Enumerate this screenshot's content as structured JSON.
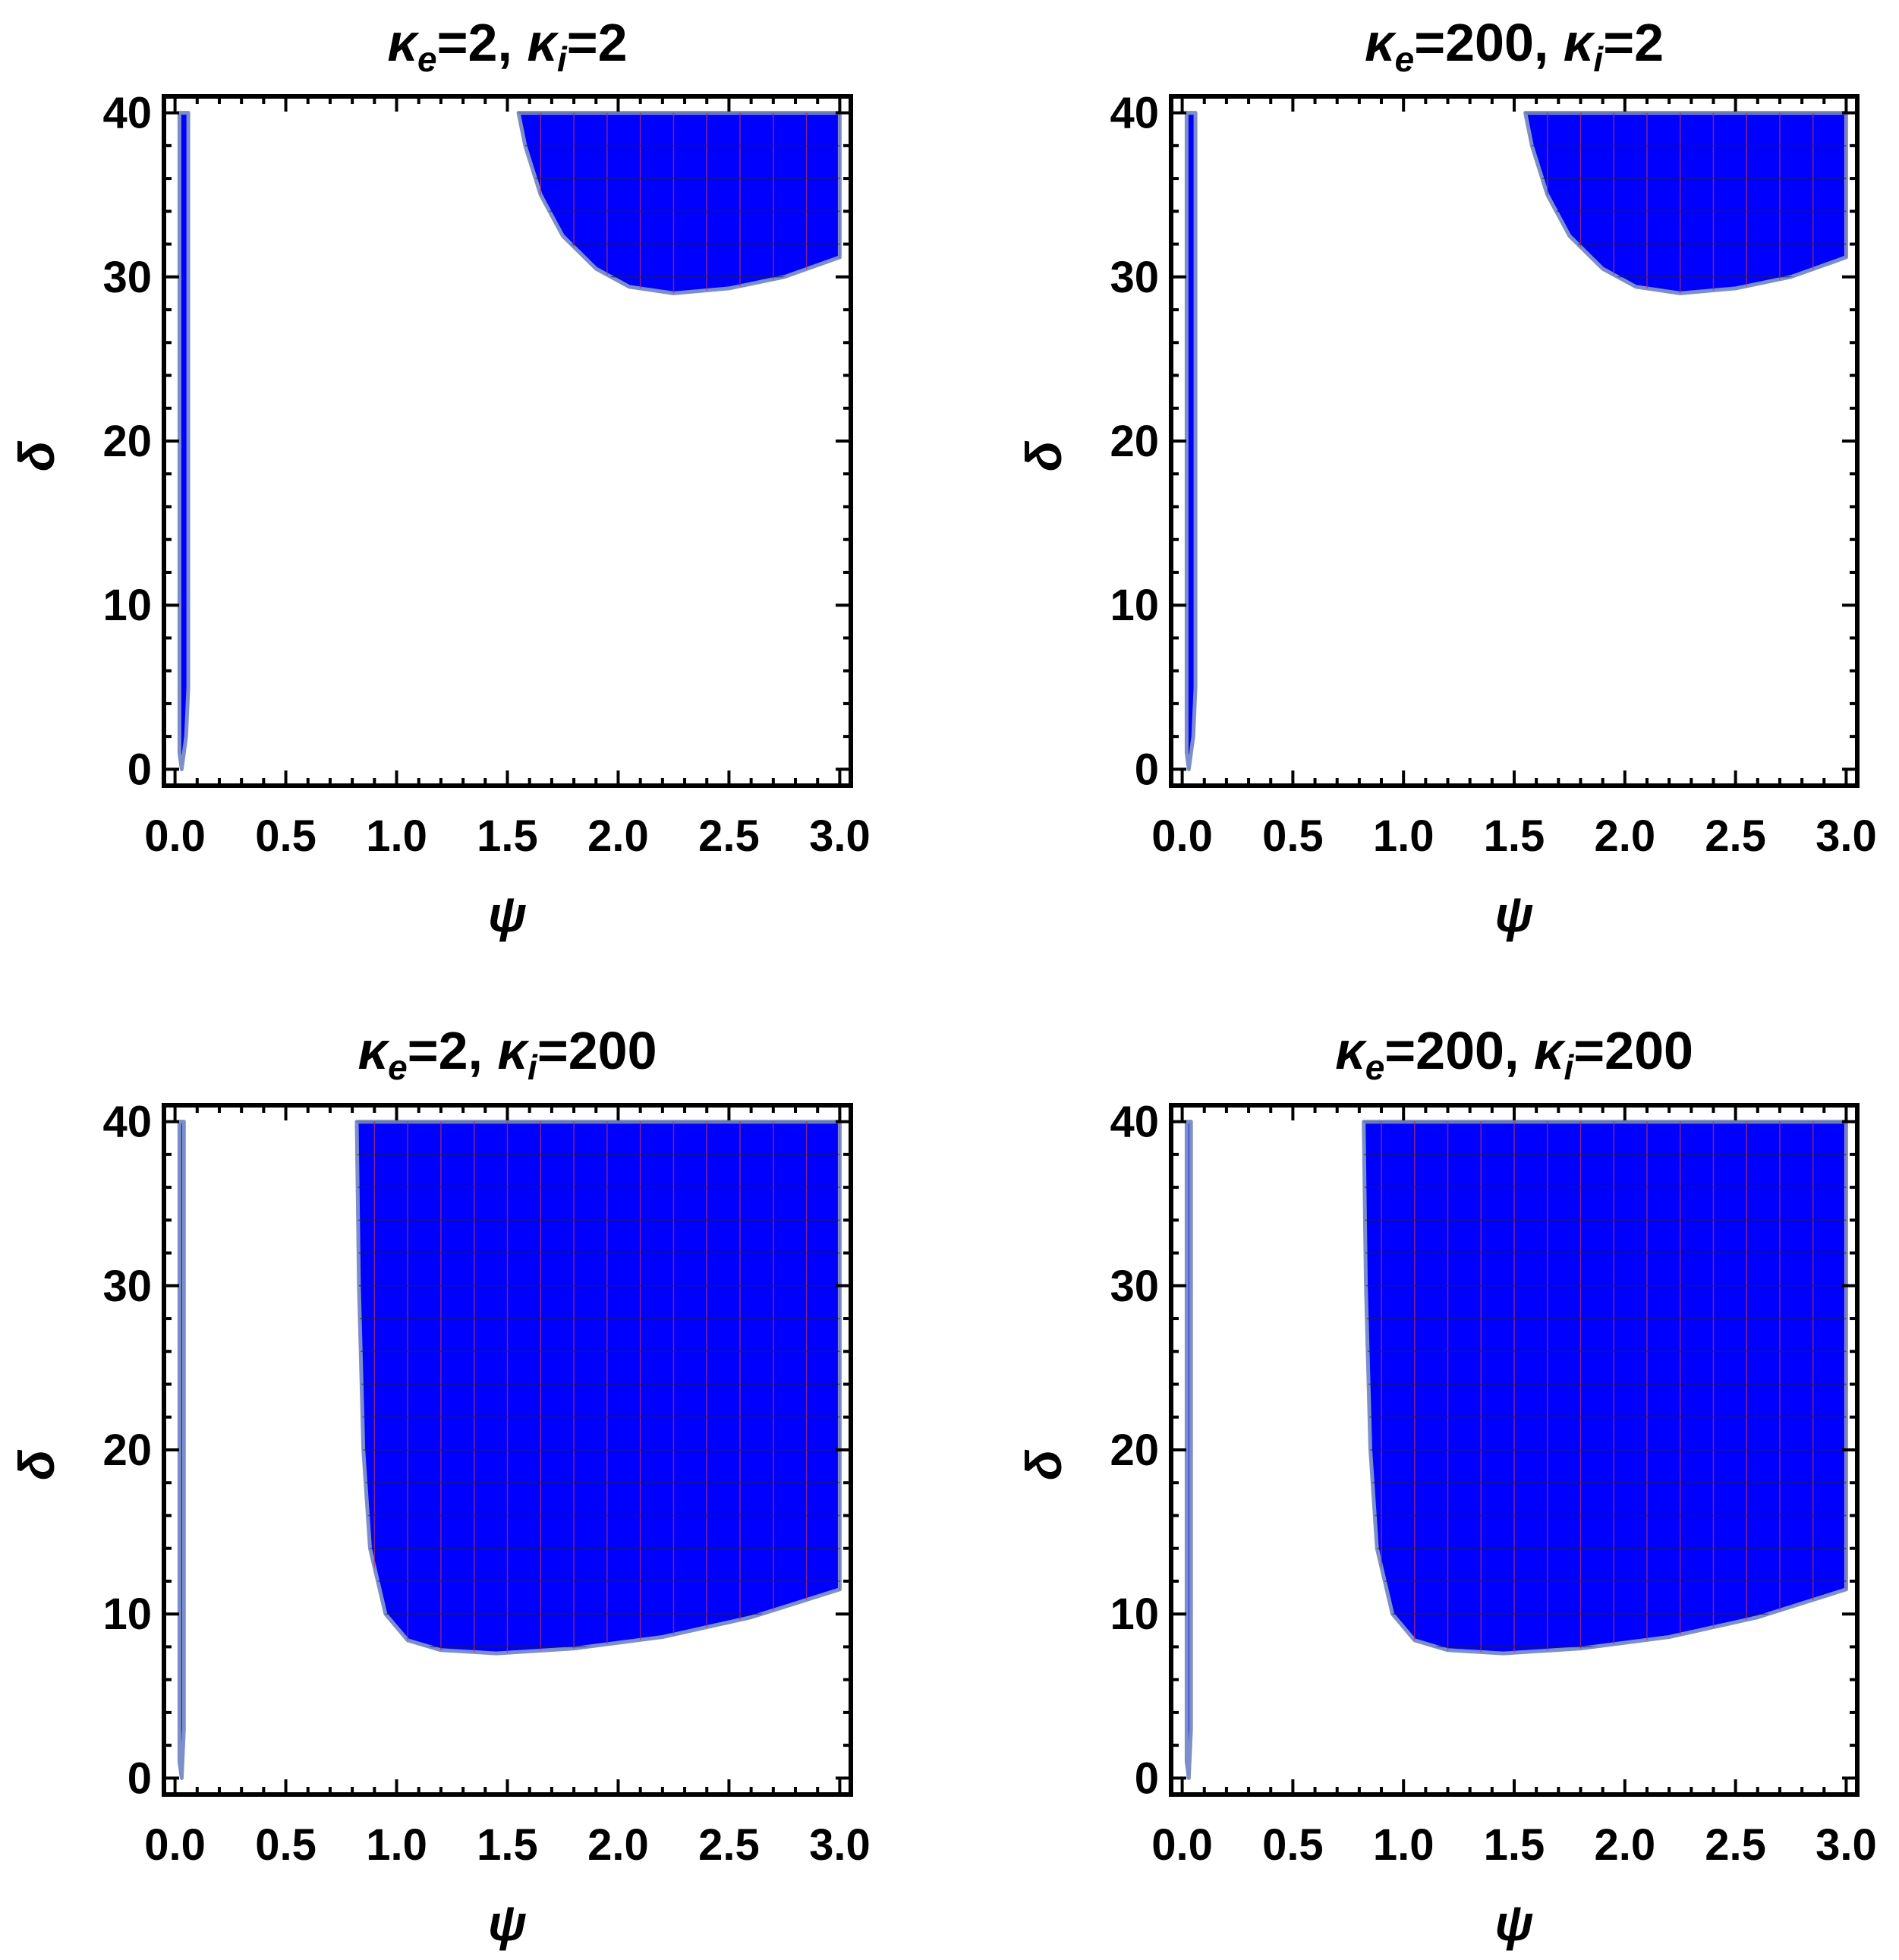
{
  "colors": {
    "region_fill": "#0000ff",
    "region_edge": "#7c8fc9",
    "grid_v": "#b03060",
    "grid_h": "#202040",
    "frame": "#000000"
  },
  "chart_data": [
    {
      "type": "area",
      "title": {
        "kappa_e": "2",
        "kappa_i": "2"
      },
      "xlabel": "ψ",
      "ylabel": "δ",
      "xlim": [
        -0.05,
        3.05
      ],
      "ylim": [
        -1,
        41
      ],
      "xticks": [
        "0.0",
        "0.5",
        "1.0",
        "1.5",
        "2.0",
        "2.5",
        "3.0"
      ],
      "yticks": [
        "0",
        "10",
        "20",
        "30",
        "40"
      ],
      "regions": [
        {
          "name": "",
          "boundary": [
            [
              0.03,
              0
            ],
            [
              0.05,
              2
            ],
            [
              0.06,
              5
            ],
            [
              0.06,
              40
            ],
            [
              0.02,
              40
            ],
            [
              0.02,
              1
            ]
          ]
        },
        {
          "name": "",
          "boundary": [
            [
              1.55,
              40
            ],
            [
              1.58,
              38
            ],
            [
              1.65,
              35
            ],
            [
              1.75,
              32.5
            ],
            [
              1.9,
              30.5
            ],
            [
              2.05,
              29.4
            ],
            [
              2.25,
              29
            ],
            [
              2.5,
              29.3
            ],
            [
              2.75,
              30
            ],
            [
              3.0,
              31.2
            ],
            [
              3.0,
              40
            ]
          ]
        }
      ]
    },
    {
      "type": "area",
      "title": {
        "kappa_e": "200",
        "kappa_i": "2"
      },
      "xlabel": "ψ",
      "ylabel": "δ",
      "xlim": [
        -0.05,
        3.05
      ],
      "ylim": [
        -1,
        41
      ],
      "xticks": [
        "0.0",
        "0.5",
        "1.0",
        "1.5",
        "2.0",
        "2.5",
        "3.0"
      ],
      "yticks": [
        "0",
        "10",
        "20",
        "30",
        "40"
      ],
      "regions": [
        {
          "name": "",
          "boundary": [
            [
              0.03,
              0
            ],
            [
              0.05,
              2
            ],
            [
              0.06,
              5
            ],
            [
              0.06,
              40
            ],
            [
              0.02,
              40
            ],
            [
              0.02,
              1
            ]
          ]
        },
        {
          "name": "",
          "boundary": [
            [
              1.55,
              40
            ],
            [
              1.58,
              38
            ],
            [
              1.65,
              35
            ],
            [
              1.75,
              32.5
            ],
            [
              1.9,
              30.5
            ],
            [
              2.05,
              29.4
            ],
            [
              2.25,
              29
            ],
            [
              2.5,
              29.3
            ],
            [
              2.75,
              30
            ],
            [
              3.0,
              31.2
            ],
            [
              3.0,
              40
            ]
          ]
        }
      ]
    },
    {
      "type": "area",
      "title": {
        "kappa_e": "2",
        "kappa_i": "200"
      },
      "xlabel": "ψ",
      "ylabel": "δ",
      "xlim": [
        -0.05,
        3.05
      ],
      "ylim": [
        -1,
        41
      ],
      "xticks": [
        "0.0",
        "0.5",
        "1.0",
        "1.5",
        "2.0",
        "2.5",
        "3.0"
      ],
      "yticks": [
        "0",
        "10",
        "20",
        "30",
        "40"
      ],
      "regions": [
        {
          "name": "",
          "boundary": [
            [
              0.03,
              0
            ],
            [
              0.04,
              3
            ],
            [
              0.04,
              40
            ],
            [
              0.02,
              40
            ],
            [
              0.02,
              1
            ]
          ]
        },
        {
          "name": "",
          "boundary": [
            [
              0.82,
              40
            ],
            [
              0.83,
              30
            ],
            [
              0.85,
              20
            ],
            [
              0.88,
              14
            ],
            [
              0.95,
              10
            ],
            [
              1.05,
              8.4
            ],
            [
              1.2,
              7.8
            ],
            [
              1.45,
              7.6
            ],
            [
              1.8,
              7.9
            ],
            [
              2.2,
              8.6
            ],
            [
              2.6,
              9.8
            ],
            [
              3.0,
              11.5
            ],
            [
              3.0,
              40
            ]
          ]
        }
      ]
    },
    {
      "type": "area",
      "title": {
        "kappa_e": "200",
        "kappa_i": "200"
      },
      "xlabel": "ψ",
      "ylabel": "δ",
      "xlim": [
        -0.05,
        3.05
      ],
      "ylim": [
        -1,
        41
      ],
      "xticks": [
        "0.0",
        "0.5",
        "1.0",
        "1.5",
        "2.0",
        "2.5",
        "3.0"
      ],
      "yticks": [
        "0",
        "10",
        "20",
        "30",
        "40"
      ],
      "regions": [
        {
          "name": "",
          "boundary": [
            [
              0.03,
              0
            ],
            [
              0.04,
              3
            ],
            [
              0.04,
              40
            ],
            [
              0.02,
              40
            ],
            [
              0.02,
              1
            ]
          ]
        },
        {
          "name": "",
          "boundary": [
            [
              0.82,
              40
            ],
            [
              0.83,
              30
            ],
            [
              0.85,
              20
            ],
            [
              0.88,
              14
            ],
            [
              0.95,
              10
            ],
            [
              1.05,
              8.4
            ],
            [
              1.2,
              7.8
            ],
            [
              1.45,
              7.6
            ],
            [
              1.8,
              7.9
            ],
            [
              2.2,
              8.6
            ],
            [
              2.6,
              9.8
            ],
            [
              3.0,
              11.5
            ],
            [
              3.0,
              40
            ]
          ]
        }
      ]
    }
  ]
}
